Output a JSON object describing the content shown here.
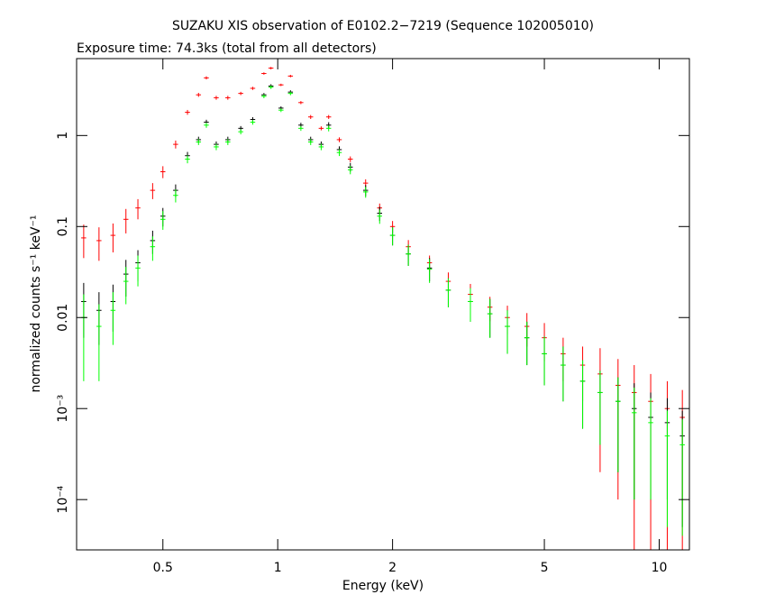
{
  "chart_data": {
    "type": "errorbar",
    "title": "SUZAKU XIS observation of E0102.2−7219 (Sequence 102005010)",
    "subtitle": "Exposure time: 74.3ks (total from all detectors)",
    "x_label": "Energy (keV)",
    "y_label": "normalized counts s⁻¹ keV⁻¹",
    "xscale": "log",
    "yscale": "log",
    "xlim": [
      0.297,
      12
    ],
    "ylim": [
      2.8e-05,
      7
    ],
    "xticks": [
      0.5,
      1,
      2,
      5,
      10
    ],
    "yticks": [
      {
        "value": 0.0001,
        "label": "10⁻⁴"
      },
      {
        "value": 0.001,
        "label": "10⁻³"
      },
      0.01,
      0.1,
      1
    ],
    "x": [
      0.31,
      0.34,
      0.37,
      0.4,
      0.43,
      0.47,
      0.5,
      0.54,
      0.58,
      0.62,
      0.65,
      0.69,
      0.74,
      0.8,
      0.86,
      0.92,
      0.96,
      1.02,
      1.08,
      1.15,
      1.22,
      1.3,
      1.36,
      1.45,
      1.55,
      1.7,
      1.85,
      2.0,
      2.2,
      2.5,
      2.8,
      3.2,
      3.6,
      4.0,
      4.5,
      5.0,
      5.6,
      6.3,
      7.0,
      7.8,
      8.6,
      9.5,
      10.5,
      11.5
    ],
    "series": [
      {
        "color": "#ff0000",
        "values": [
          0.075,
          0.07,
          0.08,
          0.12,
          0.16,
          0.25,
          0.4,
          0.8,
          1.8,
          2.8,
          4.3,
          2.6,
          2.6,
          2.9,
          3.3,
          4.8,
          5.5,
          3.6,
          4.5,
          2.3,
          1.6,
          1.2,
          1.6,
          0.9,
          0.55,
          0.3,
          0.16,
          0.1,
          0.06,
          0.04,
          0.025,
          0.018,
          0.013,
          0.01,
          0.008,
          0.006,
          0.004,
          0.003,
          0.0024,
          0.0018,
          0.0015,
          0.0012,
          0.001,
          0.0008
        ],
        "errors": [
          0.03,
          0.028,
          0.028,
          0.036,
          0.04,
          0.05,
          0.06,
          0.08,
          0.11,
          0.14,
          0.17,
          0.13,
          0.13,
          0.12,
          0.13,
          0.14,
          0.17,
          0.11,
          0.14,
          0.09,
          0.08,
          0.06,
          0.08,
          0.054,
          0.039,
          0.03,
          0.019,
          0.015,
          0.011,
          0.008,
          0.0063,
          0.0054,
          0.0039,
          0.0035,
          0.0032,
          0.0027,
          0.002,
          0.0018,
          0.0022,
          0.0017,
          0.0015,
          0.0012,
          0.001,
          0.0008
        ]
      },
      {
        "color": "#000000",
        "values": [
          0.015,
          0.012,
          0.015,
          0.03,
          0.04,
          0.07,
          0.13,
          0.25,
          0.6,
          0.9,
          1.4,
          0.8,
          0.9,
          1.2,
          1.5,
          2.8,
          3.5,
          2.0,
          3.0,
          1.3,
          0.9,
          0.8,
          1.3,
          0.7,
          0.45,
          0.25,
          0.14,
          0.08,
          0.05,
          0.035,
          0.02,
          0.015,
          0.011,
          0.008,
          0.006,
          0.004,
          0.003,
          0.002,
          0.0015,
          0.0012,
          0.001,
          0.0008,
          0.0007,
          0.0005
        ],
        "errors": [
          0.009,
          0.007,
          0.008,
          0.013,
          0.015,
          0.02,
          0.03,
          0.04,
          0.06,
          0.07,
          0.09,
          0.06,
          0.07,
          0.07,
          0.09,
          0.13,
          0.16,
          0.09,
          0.14,
          0.08,
          0.07,
          0.06,
          0.1,
          0.06,
          0.05,
          0.035,
          0.025,
          0.018,
          0.013,
          0.01,
          0.007,
          0.006,
          0.005,
          0.004,
          0.003,
          0.0022,
          0.0018,
          0.0014,
          0.0011,
          0.001,
          0.0009,
          0.0007,
          0.0006,
          0.00045
        ]
      },
      {
        "color": "#00ff00",
        "values": [
          0.01,
          0.008,
          0.012,
          0.025,
          0.035,
          0.06,
          0.12,
          0.22,
          0.55,
          0.85,
          1.3,
          0.75,
          0.85,
          1.1,
          1.4,
          2.7,
          3.4,
          1.9,
          2.9,
          1.2,
          0.85,
          0.75,
          1.2,
          0.65,
          0.42,
          0.24,
          0.13,
          0.08,
          0.05,
          0.034,
          0.02,
          0.015,
          0.011,
          0.008,
          0.006,
          0.004,
          0.003,
          0.002,
          0.0015,
          0.0012,
          0.0009,
          0.0007,
          0.0005,
          0.0004
        ],
        "errors": [
          0.008,
          0.006,
          0.007,
          0.011,
          0.013,
          0.018,
          0.028,
          0.036,
          0.055,
          0.065,
          0.085,
          0.06,
          0.065,
          0.07,
          0.085,
          0.13,
          0.15,
          0.09,
          0.13,
          0.075,
          0.065,
          0.06,
          0.09,
          0.055,
          0.045,
          0.033,
          0.023,
          0.018,
          0.013,
          0.01,
          0.007,
          0.006,
          0.005,
          0.004,
          0.003,
          0.0022,
          0.0018,
          0.0014,
          0.0011,
          0.001,
          0.0008,
          0.0006,
          0.00045,
          0.00036
        ]
      }
    ]
  }
}
